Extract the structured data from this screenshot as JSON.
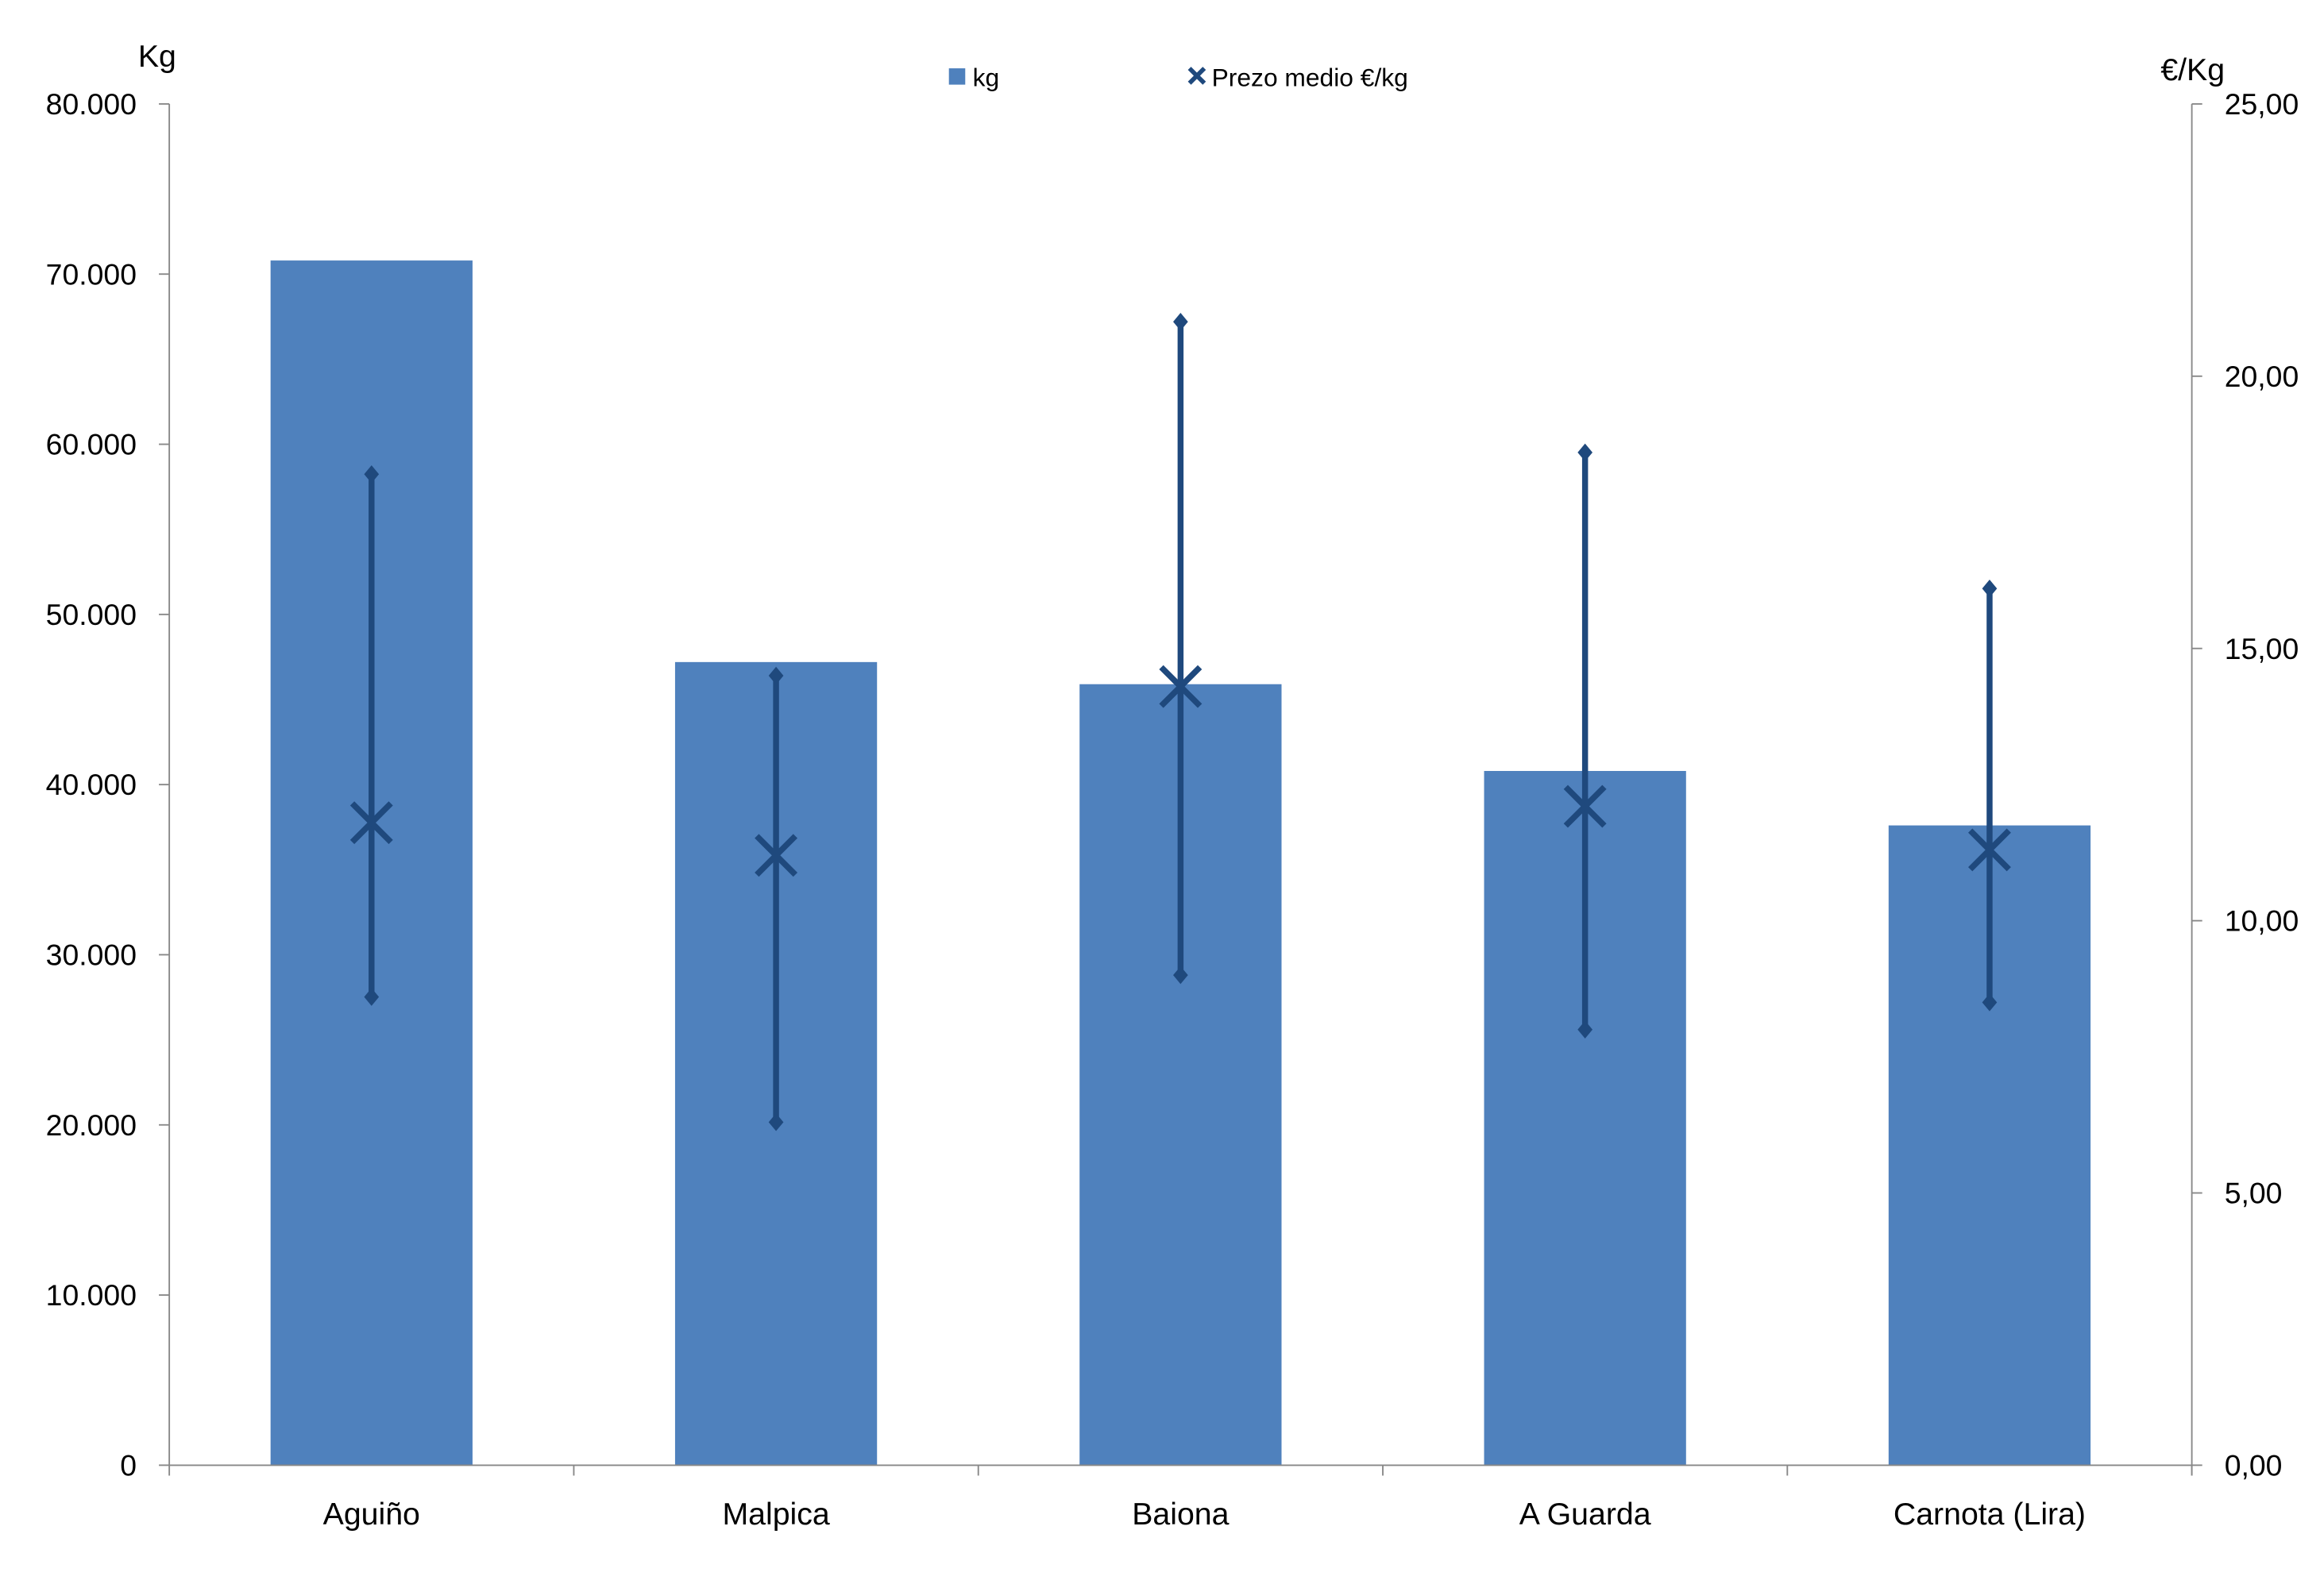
{
  "chart_data": {
    "type": "bar",
    "title": "",
    "categories": [
      "Aguiño",
      "Malpica",
      "Baiona",
      "A Guarda",
      "Carnota (Lira)"
    ],
    "series": [
      {
        "name": "kg",
        "axis": "left",
        "type": "bar",
        "values": [
          70800,
          47200,
          45900,
          40800,
          37600
        ]
      },
      {
        "name": "Prezo medio €/kg",
        "axis": "right",
        "type": "marker",
        "values": [
          11.8,
          11.2,
          14.3,
          12.1,
          11.3
        ],
        "high": [
          18.2,
          14.5,
          21.0,
          18.6,
          16.1
        ],
        "low": [
          8.6,
          6.3,
          9.0,
          8.0,
          8.5
        ]
      }
    ],
    "ylabel": "Kg",
    "y2label": "€/Kg",
    "ylim": [
      0,
      80000
    ],
    "y2lim": [
      0,
      25
    ],
    "yticks": [
      "0",
      "10.000",
      "20.000",
      "30.000",
      "40.000",
      "50.000",
      "60.000",
      "70.000",
      "80.000"
    ],
    "y2ticks": [
      "0,00",
      "5,00",
      "10,00",
      "15,00",
      "20,00",
      "25,00"
    ],
    "legend": [
      "kg",
      "Prezo medio €/kg"
    ],
    "legend_position": "top-center",
    "grid": false,
    "colors": {
      "bar": "#4f81bd",
      "marker": "#1f497d"
    }
  }
}
